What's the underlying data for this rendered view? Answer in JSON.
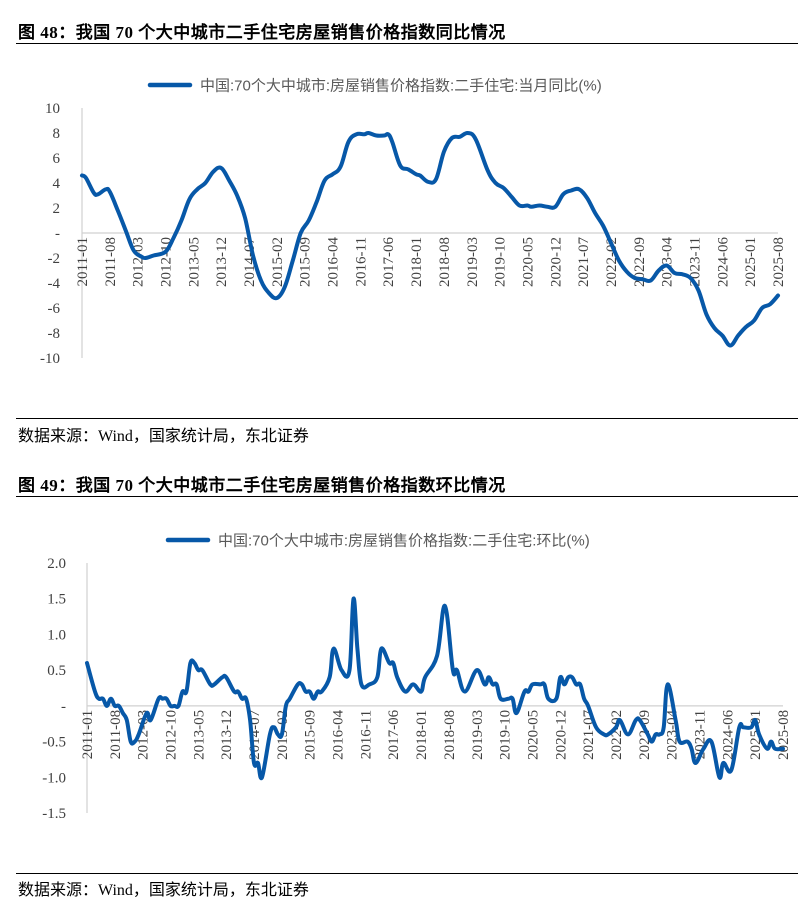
{
  "figures": [
    {
      "title": "图  48：我国 70 个大中城市二手住宅房屋销售价格指数同比情况",
      "source": "数据来源：Wind，国家统计局，东北证券"
    },
    {
      "title": "图  49：我国 70 个大中城市二手住宅房屋销售价格指数环比情况",
      "source": "数据来源：Wind，国家统计局，东北证券"
    }
  ],
  "chart_data": [
    {
      "type": "line",
      "title": "",
      "legend": [
        "中国:70个大中城市:房屋销售价格指数:二手住宅:当月同比(%)"
      ],
      "legend_position": "top",
      "xlabel": "",
      "ylabel": "",
      "ylim": [
        -10,
        10
      ],
      "yticks": [
        10,
        8,
        6,
        4,
        2,
        0,
        -2,
        -4,
        -6,
        -8,
        -10
      ],
      "ytick_labels": [
        "10",
        "8",
        "6",
        "4",
        "2",
        "-",
        "-2",
        "-4",
        "-6",
        "-8",
        "-10"
      ],
      "xrange": [
        "2011-01",
        "2025-08"
      ],
      "xtick_labels": [
        "2011-01",
        "2011-08",
        "2012-03",
        "2012-10",
        "2013-05",
        "2013-12",
        "2014-07",
        "2015-02",
        "2015-09",
        "2016-04",
        "2016-11",
        "2017-06",
        "2018-01",
        "2018-08",
        "2019-03",
        "2019-10",
        "2020-05",
        "2020-12",
        "2021-07",
        "2022-02",
        "2022-09",
        "2023-04",
        "2023-11",
        "2024-06",
        "2025-01",
        "2025-08"
      ],
      "color": "#0758A8",
      "series": [
        {
          "name": "中国:70个大中城市:房屋销售价格指数:二手住宅:当月同比(%)",
          "points": [
            [
              "2011-01",
              4.6
            ],
            [
              "2011-02",
              4.4
            ],
            [
              "2011-04",
              3.2
            ],
            [
              "2011-05",
              3.1
            ],
            [
              "2011-07",
              3.5
            ],
            [
              "2011-08",
              3.3
            ],
            [
              "2011-10",
              1.8
            ],
            [
              "2011-12",
              0.2
            ],
            [
              "2012-02",
              -1.4
            ],
            [
              "2012-04",
              -1.9
            ],
            [
              "2012-05",
              -2.0
            ],
            [
              "2012-07",
              -1.8
            ],
            [
              "2012-10",
              -1.5
            ],
            [
              "2012-12",
              -0.4
            ],
            [
              "2013-02",
              1.0
            ],
            [
              "2013-04",
              2.7
            ],
            [
              "2013-06",
              3.5
            ],
            [
              "2013-08",
              4.0
            ],
            [
              "2013-10",
              4.9
            ],
            [
              "2013-12",
              5.2
            ],
            [
              "2014-02",
              4.2
            ],
            [
              "2014-04",
              3.0
            ],
            [
              "2014-06",
              1.2
            ],
            [
              "2014-08",
              -1.8
            ],
            [
              "2014-10",
              -3.8
            ],
            [
              "2014-12",
              -4.8
            ],
            [
              "2015-02",
              -5.2
            ],
            [
              "2015-04",
              -4.3
            ],
            [
              "2015-06",
              -2.2
            ],
            [
              "2015-08",
              0.0
            ],
            [
              "2015-10",
              1.0
            ],
            [
              "2015-12",
              2.5
            ],
            [
              "2016-02",
              4.2
            ],
            [
              "2016-04",
              4.7
            ],
            [
              "2016-06",
              5.3
            ],
            [
              "2016-08",
              7.3
            ],
            [
              "2016-10",
              7.9
            ],
            [
              "2016-12",
              7.9
            ],
            [
              "2017-01",
              8.0
            ],
            [
              "2017-03",
              7.8
            ],
            [
              "2017-05",
              7.8
            ],
            [
              "2017-06",
              7.9
            ],
            [
              "2017-07",
              7.3
            ],
            [
              "2017-09",
              5.4
            ],
            [
              "2017-11",
              5.1
            ],
            [
              "2018-01",
              4.7
            ],
            [
              "2018-02",
              4.6
            ],
            [
              "2018-04",
              4.1
            ],
            [
              "2018-06",
              4.3
            ],
            [
              "2018-08",
              6.5
            ],
            [
              "2018-10",
              7.6
            ],
            [
              "2018-12",
              7.7
            ],
            [
              "2019-02",
              8.0
            ],
            [
              "2019-04",
              7.5
            ],
            [
              "2019-07",
              5.0
            ],
            [
              "2019-09",
              4.0
            ],
            [
              "2019-11",
              3.6
            ],
            [
              "2020-01",
              2.9
            ],
            [
              "2020-03",
              2.2
            ],
            [
              "2020-05",
              2.2
            ],
            [
              "2020-06",
              2.1
            ],
            [
              "2020-08",
              2.2
            ],
            [
              "2020-10",
              2.1
            ],
            [
              "2020-12",
              2.1
            ],
            [
              "2021-02",
              3.1
            ],
            [
              "2021-04",
              3.4
            ],
            [
              "2021-06",
              3.5
            ],
            [
              "2021-08",
              2.8
            ],
            [
              "2021-10",
              1.6
            ],
            [
              "2021-12",
              0.6
            ],
            [
              "2022-02",
              -0.8
            ],
            [
              "2022-04",
              -2.2
            ],
            [
              "2022-06",
              -3.1
            ],
            [
              "2022-08",
              -3.6
            ],
            [
              "2022-10",
              -3.7
            ],
            [
              "2022-12",
              -3.8
            ],
            [
              "2023-02",
              -3.0
            ],
            [
              "2023-04",
              -2.6
            ],
            [
              "2023-06",
              -3.2
            ],
            [
              "2023-08",
              -3.3
            ],
            [
              "2023-10",
              -3.6
            ],
            [
              "2023-12",
              -4.6
            ],
            [
              "2024-02",
              -6.5
            ],
            [
              "2024-04",
              -7.6
            ],
            [
              "2024-06",
              -8.2
            ],
            [
              "2024-08",
              -9.0
            ],
            [
              "2024-10",
              -8.2
            ],
            [
              "2024-12",
              -7.5
            ],
            [
              "2025-02",
              -7.0
            ],
            [
              "2025-04",
              -6.0
            ],
            [
              "2025-06",
              -5.7
            ],
            [
              "2025-08",
              -5.0
            ]
          ]
        }
      ]
    },
    {
      "type": "line",
      "title": "",
      "legend": [
        "中国:70个大中城市:房屋销售价格指数:二手住宅:环比(%)"
      ],
      "legend_position": "top",
      "xlabel": "",
      "ylabel": "",
      "ylim": [
        -1.5,
        2.0
      ],
      "yticks": [
        2.0,
        1.5,
        1.0,
        0.5,
        0,
        -0.5,
        -1.0,
        -1.5
      ],
      "ytick_labels": [
        "2.0",
        "1.5",
        "1.0",
        "0.5",
        "-",
        "-0.5",
        "-1.0",
        "-1.5"
      ],
      "xrange": [
        "2011-01",
        "2025-08"
      ],
      "xtick_labels": [
        "2011-01",
        "2011-08",
        "2012-03",
        "2012-10",
        "2013-05",
        "2013-12",
        "2014-07",
        "2015-02",
        "2015-09",
        "2016-04",
        "2016-11",
        "2017-06",
        "2018-01",
        "2018-08",
        "2019-03",
        "2019-10",
        "2020-05",
        "2020-12",
        "2021-07",
        "2022-02",
        "2022-09",
        "2023-04",
        "2023-11",
        "2024-06",
        "2025-01",
        "2025-08"
      ],
      "color": "#0758A8",
      "series": [
        {
          "name": "中国:70个大中城市:房屋销售价格指数:二手住宅:环比(%)",
          "points": [
            [
              "2011-01",
              0.6
            ],
            [
              "2011-03",
              0.2
            ],
            [
              "2011-04",
              0.1
            ],
            [
              "2011-05",
              0.1
            ],
            [
              "2011-06",
              0.0
            ],
            [
              "2011-07",
              0.1
            ],
            [
              "2011-08",
              0.0
            ],
            [
              "2011-09",
              0.0
            ],
            [
              "2011-10",
              -0.1
            ],
            [
              "2011-11",
              -0.2
            ],
            [
              "2011-12",
              -0.5
            ],
            [
              "2012-01",
              -0.5
            ],
            [
              "2012-02",
              -0.4
            ],
            [
              "2012-04",
              -0.1
            ],
            [
              "2012-05",
              -0.2
            ],
            [
              "2012-07",
              0.1
            ],
            [
              "2012-08",
              0.1
            ],
            [
              "2012-09",
              0.1
            ],
            [
              "2012-10",
              0.0
            ],
            [
              "2012-11",
              0.0
            ],
            [
              "2012-12",
              0.0
            ],
            [
              "2013-01",
              0.2
            ],
            [
              "2013-02",
              0.2
            ],
            [
              "2013-03",
              0.6
            ],
            [
              "2013-04",
              0.6
            ],
            [
              "2013-05",
              0.5
            ],
            [
              "2013-06",
              0.5
            ],
            [
              "2013-08",
              0.3
            ],
            [
              "2013-09",
              0.3
            ],
            [
              "2013-11",
              0.4
            ],
            [
              "2013-12",
              0.4
            ],
            [
              "2014-02",
              0.2
            ],
            [
              "2014-03",
              0.2
            ],
            [
              "2014-04",
              0.1
            ],
            [
              "2014-05",
              0.1
            ],
            [
              "2014-06",
              -0.2
            ],
            [
              "2014-07",
              -0.8
            ],
            [
              "2014-08",
              -0.8
            ],
            [
              "2014-09",
              -1.0
            ],
            [
              "2014-11",
              -0.4
            ],
            [
              "2014-12",
              -0.3
            ],
            [
              "2015-01",
              -0.4
            ],
            [
              "2015-02",
              -0.4
            ],
            [
              "2015-03",
              0.0
            ],
            [
              "2015-04",
              0.1
            ],
            [
              "2015-06",
              0.3
            ],
            [
              "2015-07",
              0.3
            ],
            [
              "2015-08",
              0.2
            ],
            [
              "2015-09",
              0.2
            ],
            [
              "2015-10",
              0.1
            ],
            [
              "2015-11",
              0.2
            ],
            [
              "2015-12",
              0.2
            ],
            [
              "2016-02",
              0.4
            ],
            [
              "2016-03",
              0.8
            ],
            [
              "2016-05",
              0.5
            ],
            [
              "2016-07",
              0.5
            ],
            [
              "2016-08",
              1.5
            ],
            [
              "2016-09",
              0.8
            ],
            [
              "2016-10",
              0.3
            ],
            [
              "2016-12",
              0.3
            ],
            [
              "2017-02",
              0.4
            ],
            [
              "2017-03",
              0.8
            ],
            [
              "2017-05",
              0.6
            ],
            [
              "2017-06",
              0.6
            ],
            [
              "2017-07",
              0.4
            ],
            [
              "2017-09",
              0.2
            ],
            [
              "2017-11",
              0.3
            ],
            [
              "2018-01",
              0.2
            ],
            [
              "2018-02",
              0.4
            ],
            [
              "2018-05",
              0.7
            ],
            [
              "2018-07",
              1.4
            ],
            [
              "2018-09",
              0.5
            ],
            [
              "2018-10",
              0.5
            ],
            [
              "2018-12",
              0.2
            ],
            [
              "2019-03",
              0.5
            ],
            [
              "2019-05",
              0.3
            ],
            [
              "2019-06",
              0.4
            ],
            [
              "2019-07",
              0.3
            ],
            [
              "2019-08",
              0.3
            ],
            [
              "2019-09",
              0.1
            ],
            [
              "2019-11",
              0.1
            ],
            [
              "2019-12",
              0.1
            ],
            [
              "2020-01",
              -0.1
            ],
            [
              "2020-03",
              0.2
            ],
            [
              "2020-04",
              0.2
            ],
            [
              "2020-05",
              0.3
            ],
            [
              "2020-07",
              0.3
            ],
            [
              "2020-08",
              0.3
            ],
            [
              "2020-09",
              0.1
            ],
            [
              "2020-11",
              0.1
            ],
            [
              "2020-12",
              0.4
            ],
            [
              "2021-01",
              0.3
            ],
            [
              "2021-02",
              0.4
            ],
            [
              "2021-03",
              0.4
            ],
            [
              "2021-04",
              0.3
            ],
            [
              "2021-05",
              0.3
            ],
            [
              "2021-06",
              0.1
            ],
            [
              "2021-07",
              0.0
            ],
            [
              "2021-09",
              -0.3
            ],
            [
              "2021-11",
              -0.4
            ],
            [
              "2021-12",
              -0.4
            ],
            [
              "2022-02",
              -0.3
            ],
            [
              "2022-03",
              -0.2
            ],
            [
              "2022-05",
              -0.4
            ],
            [
              "2022-07",
              -0.2
            ],
            [
              "2022-08",
              -0.2
            ],
            [
              "2022-10",
              -0.4
            ],
            [
              "2022-11",
              -0.5
            ],
            [
              "2022-12",
              -0.4
            ],
            [
              "2023-01",
              -0.4
            ],
            [
              "2023-02",
              -0.3
            ],
            [
              "2023-03",
              0.3
            ],
            [
              "2023-05",
              -0.2
            ],
            [
              "2023-06",
              -0.5
            ],
            [
              "2023-08",
              -0.5
            ],
            [
              "2023-09",
              -0.6
            ],
            [
              "2023-10",
              -0.8
            ],
            [
              "2023-12",
              -0.6
            ],
            [
              "2024-02",
              -0.5
            ],
            [
              "2024-04",
              -1.0
            ],
            [
              "2024-05",
              -0.8
            ],
            [
              "2024-07",
              -0.9
            ],
            [
              "2024-09",
              -0.3
            ],
            [
              "2024-10",
              -0.3
            ],
            [
              "2024-12",
              -0.3
            ],
            [
              "2025-01",
              -0.2
            ],
            [
              "2025-02",
              -0.4
            ],
            [
              "2025-04",
              -0.6
            ],
            [
              "2025-05",
              -0.5
            ],
            [
              "2025-06",
              -0.6
            ],
            [
              "2025-08",
              -0.6
            ]
          ]
        }
      ]
    }
  ]
}
